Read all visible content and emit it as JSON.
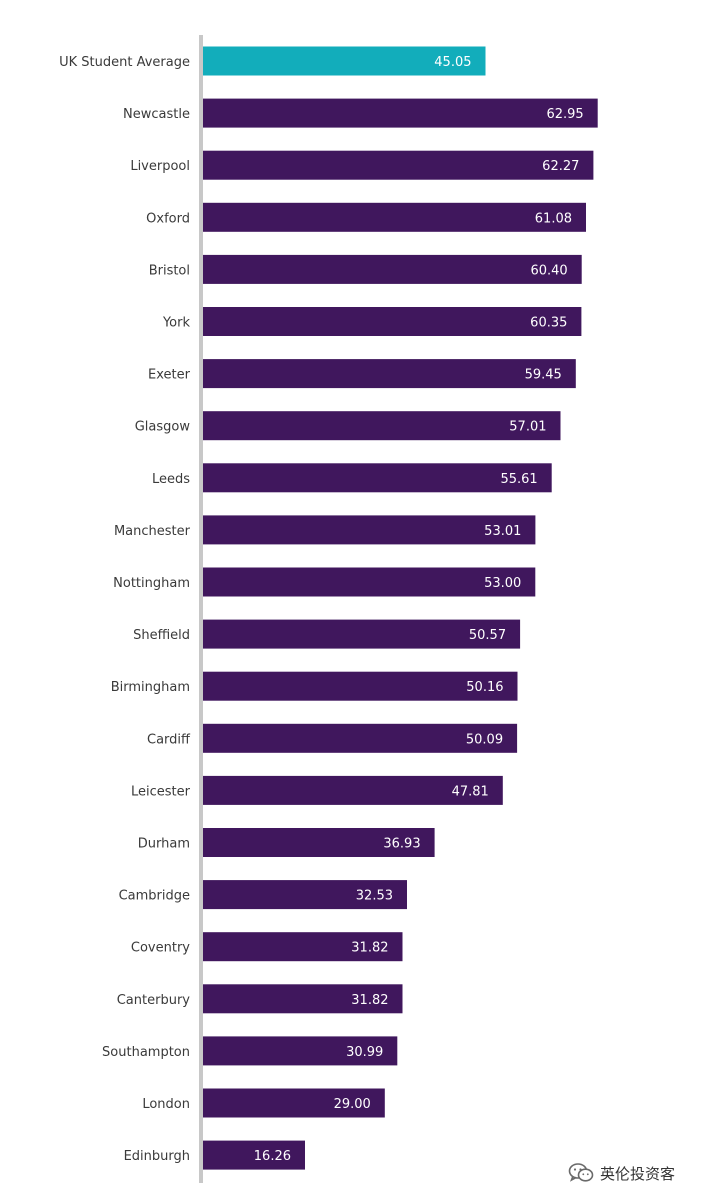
{
  "chart_data": {
    "type": "bar",
    "orientation": "horizontal",
    "title": "",
    "xlabel": "",
    "ylabel": "",
    "xlim": [
      0,
      65
    ],
    "grid": false,
    "legend": "none",
    "categories": [
      "UK Student Average",
      "Newcastle",
      "Liverpool",
      "Oxford",
      "Bristol",
      "York",
      "Exeter",
      "Glasgow",
      "Leeds",
      "Manchester",
      "Nottingham",
      "Sheffield",
      "Birmingham",
      "Cardiff",
      "Leicester",
      "Durham",
      "Cambridge",
      "Coventry",
      "Canterbury",
      "Southampton",
      "London",
      "Edinburgh"
    ],
    "values": [
      45.05,
      62.95,
      62.27,
      61.08,
      60.4,
      60.35,
      59.45,
      57.01,
      55.61,
      53.01,
      53.0,
      50.57,
      50.16,
      50.09,
      47.81,
      36.93,
      32.53,
      31.82,
      31.82,
      30.99,
      29.0,
      16.26
    ],
    "value_labels": [
      "45.05",
      "62.95",
      "62.27",
      "61.08",
      "60.40",
      "60.35",
      "59.45",
      "57.01",
      "55.61",
      "53.01",
      "53.00",
      "50.57",
      "50.16",
      "50.09",
      "47.81",
      "36.93",
      "32.53",
      "31.82",
      "31.82",
      "30.99",
      "29.00",
      "16.26"
    ],
    "colors": {
      "highlight": "#12adbb",
      "bar": "#40175d",
      "axis": "#c8c8c8"
    },
    "highlight_index": 0
  },
  "watermark": {
    "text": "英伦投资客",
    "icon": "wechat-icon"
  }
}
